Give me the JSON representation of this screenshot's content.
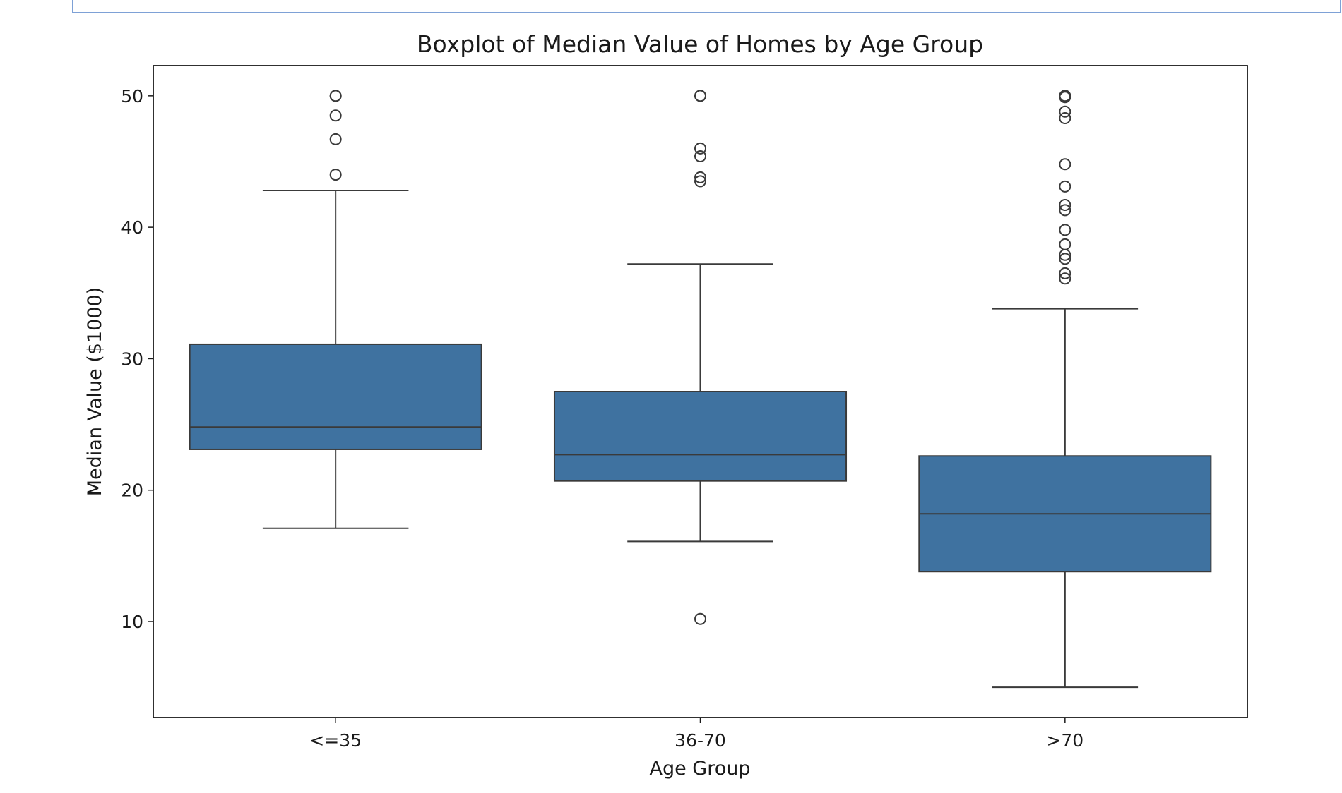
{
  "chart_data": {
    "type": "box",
    "title": "Boxplot of Median Value of Homes by Age Group",
    "xlabel": "Age Group",
    "ylabel": "Median Value ($1000)",
    "ylim": [
      2.7,
      52.3
    ],
    "yticks": [
      10,
      20,
      30,
      40,
      50
    ],
    "grid": false,
    "box_color": "#3f72a0",
    "line_color": "#3a3a3a",
    "categories": [
      "<=35",
      "36-70",
      ">70"
    ],
    "boxes": [
      {
        "category": "<=35",
        "whisker_low": 17.1,
        "q1": 23.1,
        "median": 24.8,
        "q3": 31.1,
        "whisker_high": 42.8,
        "outliers": [
          50.0,
          50.0,
          48.5,
          46.7,
          44.0
        ]
      },
      {
        "category": "36-70",
        "whisker_low": 16.1,
        "q1": 20.7,
        "median": 22.7,
        "q3": 27.5,
        "whisker_high": 37.2,
        "outliers": [
          50.0,
          50.0,
          46.0,
          45.4,
          43.8,
          43.5,
          10.2
        ]
      },
      {
        "category": ">70",
        "whisker_low": 5.0,
        "q1": 13.8,
        "median": 18.2,
        "q3": 22.6,
        "whisker_high": 33.8,
        "outliers": [
          50.0,
          50.0,
          50.0,
          49.9,
          48.8,
          48.3,
          44.8,
          43.1,
          41.7,
          41.3,
          39.8,
          38.7,
          37.9,
          37.6,
          36.5,
          36.1
        ]
      }
    ]
  }
}
